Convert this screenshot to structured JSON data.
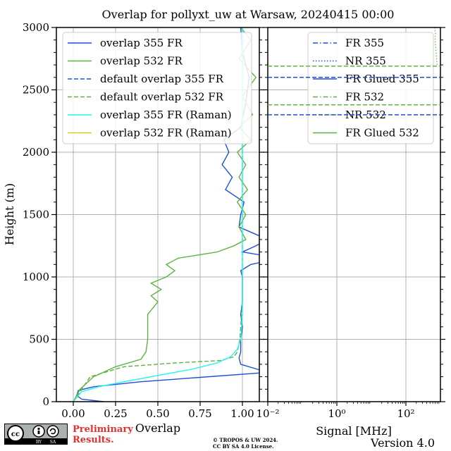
{
  "chart_data": [
    {
      "type": "line",
      "title": "Overlap for pollyxt_uw at Warsaw, 20240415 00:00",
      "xlabel": "Overlap",
      "ylabel": "Height (m)",
      "xlim": [
        -0.1,
        1.1
      ],
      "ylim": [
        0,
        3000
      ],
      "xticks": [
        "0.00",
        "0.25",
        "0.50",
        "0.75",
        "1.00"
      ],
      "xtick_values": [
        0,
        0.25,
        0.5,
        0.75,
        1.0
      ],
      "yticks": [
        "0",
        "500",
        "1000",
        "1500",
        "2000",
        "2500",
        "3000"
      ],
      "ytick_values": [
        0,
        500,
        1000,
        1500,
        2000,
        2500,
        3000
      ],
      "grid": true,
      "legend_position": "top-right",
      "series": [
        {
          "name": "overlap 355 FR",
          "color": "#1f4ed8",
          "dash": "solid",
          "x": [
            0.18,
            0.05,
            0.02,
            0.03,
            0.12,
            0.4,
            0.75,
            1.15,
            0.99,
            0.98,
            0.99,
            0.99,
            1.0,
            0.99,
            1.0,
            1.0,
            1.0,
            0.99,
            1.05,
            1.22,
            1.0,
            1.08,
            1.15,
            0.98,
            0.99,
            1.01,
            0.9,
            0.94,
            0.88,
            0.92,
            0.89,
            0.99,
            1.02,
            1.04,
            1.0,
            0.99
          ],
          "y": [
            0,
            20,
            50,
            90,
            120,
            160,
            195,
            235,
            300,
            350,
            400,
            500,
            600,
            700,
            800,
            900,
            1000,
            1050,
            1100,
            1150,
            1200,
            1250,
            1300,
            1400,
            1500,
            1600,
            1700,
            1800,
            1900,
            2000,
            2100,
            2200,
            2400,
            2600,
            2800,
            3000
          ]
        },
        {
          "name": "overlap 532 FR",
          "color": "#5db33f",
          "dash": "solid",
          "x": [
            0.0,
            0.04,
            0.12,
            0.25,
            0.4,
            0.43,
            0.44,
            0.44,
            0.44,
            0.5,
            0.46,
            0.52,
            0.46,
            0.55,
            0.6,
            0.55,
            0.62,
            0.85,
            0.95,
            1.02,
            0.98,
            1.02,
            0.97,
            1.03,
            0.98,
            1.02,
            0.97,
            1.05,
            0.98,
            1.06,
            1.0,
            1.08,
            0.98,
            1.05,
            0.99
          ],
          "y": [
            0,
            100,
            200,
            280,
            340,
            400,
            500,
            600,
            700,
            800,
            850,
            900,
            950,
            1000,
            1050,
            1100,
            1150,
            1200,
            1250,
            1300,
            1400,
            1500,
            1600,
            1700,
            1800,
            1900,
            2000,
            2100,
            2200,
            2300,
            2450,
            2600,
            2750,
            2900,
            3000
          ]
        },
        {
          "name": "default overlap 355 FR",
          "color": "#1f4ed8",
          "dash": "dashed",
          "x": [],
          "y": []
        },
        {
          "name": "default overlap 532 FR",
          "color": "#5db33f",
          "dash": "dashed",
          "x": [
            0.0,
            0.1,
            0.3,
            0.6,
            0.87,
            0.95,
            0.97,
            0.985,
            0.99,
            1.0,
            1.0,
            1.0,
            1.0,
            1.0
          ],
          "y": [
            0,
            200,
            280,
            310,
            330,
            360,
            400,
            500,
            600,
            800,
            1000,
            1500,
            2000,
            3000
          ]
        },
        {
          "name": "overlap 355 FR (Raman)",
          "color": "#22f4f4",
          "dash": "solid",
          "x": [
            0.0,
            0.05,
            0.15,
            0.3,
            0.5,
            0.7,
            0.85,
            0.93,
            0.97,
            0.99,
            1.0,
            1.0,
            1.0,
            1.0,
            1.0
          ],
          "y": [
            0,
            80,
            120,
            160,
            210,
            260,
            310,
            360,
            420,
            500,
            700,
            1000,
            1500,
            2000,
            3000
          ]
        },
        {
          "name": "overlap 532 FR (Raman)",
          "color": "#cccc22",
          "dash": "solid",
          "x": [],
          "y": []
        }
      ]
    },
    {
      "type": "line",
      "xlabel": "Signal [MHz]",
      "xscale": "log",
      "xlim": [
        0.01,
        1000
      ],
      "ylim": [
        0,
        3000
      ],
      "xticks": [
        "10⁻²",
        "10⁰",
        "10²"
      ],
      "xtick_values": [
        0.01,
        1,
        100
      ],
      "grid": true,
      "legend_position": "top-right",
      "series": [
        {
          "name": "FR 355",
          "color": "#1f4ed8",
          "dash": "dashdot",
          "x": [],
          "y": []
        },
        {
          "name": "NR 355",
          "color": "#1f4ed8",
          "dash": "dotted",
          "x": [],
          "y": []
        },
        {
          "name": "FR Glued 355",
          "color": "#1f4ed8",
          "dash": "solid",
          "x": [],
          "y": []
        },
        {
          "name": "FR 532",
          "color": "#5db33f",
          "dash": "dashdot",
          "x": [],
          "y": []
        },
        {
          "name": "NR 532",
          "color": "#5db33f",
          "dash": "dotted",
          "x": [
            800,
            750,
            700,
            720,
            680
          ],
          "y": [
            2700,
            2800,
            2900,
            2950,
            3000
          ]
        },
        {
          "name": "FR Glued 532",
          "color": "#5db33f",
          "dash": "solid",
          "x": [],
          "y": []
        }
      ],
      "reference_lines": [
        {
          "name": "ref-355-a",
          "color": "#1f4ed8",
          "height": 2600
        },
        {
          "name": "ref-355-b",
          "color": "#1f4ed8",
          "height": 2300
        },
        {
          "name": "ref-532-a",
          "color": "#5db33f",
          "height": 2690
        },
        {
          "name": "ref-532-b",
          "color": "#5db33f",
          "height": 2380
        }
      ]
    }
  ],
  "footer": {
    "preliminary_line1": "Preliminary",
    "preliminary_line2": "Results.",
    "copyright_line1": "© TROPOS & UW 2024.",
    "copyright_line2": "CC BY SA 4.0 License.",
    "version": "Version 4.0",
    "license_badge": {
      "cc": "cc",
      "by": "BY",
      "sa": "SA"
    }
  }
}
